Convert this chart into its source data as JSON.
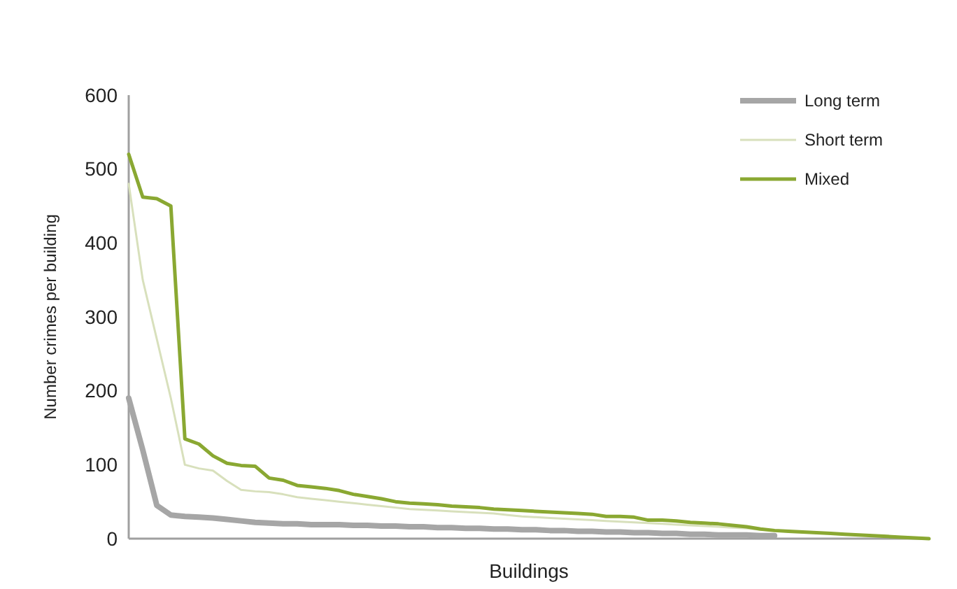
{
  "chart_data": {
    "type": "line",
    "xlabel": "Buildings",
    "ylabel": "Number crimes per building",
    "categories": [
      null,
      null,
      null,
      null,
      null,
      null,
      null,
      null,
      null,
      null,
      null,
      null,
      null,
      null,
      null,
      null,
      null,
      null,
      null,
      null,
      null,
      null,
      null,
      null,
      null,
      null,
      null,
      null,
      null,
      null,
      null,
      null,
      null,
      null,
      null,
      null,
      null,
      null,
      null,
      null,
      null,
      null,
      null,
      null,
      null,
      null,
      null,
      null,
      null,
      null,
      null,
      null,
      null,
      null,
      null,
      null,
      null,
      null
    ],
    "ylim": [
      0,
      600
    ],
    "yticks": [
      0,
      100,
      200,
      300,
      400,
      500,
      600
    ],
    "grid": false,
    "legend": "top right",
    "marker": "none",
    "line_style": "solid",
    "series": [
      {
        "name": "Long term",
        "color": "#a6a6a6",
        "values": [
          190,
          120,
          45,
          32,
          30,
          29,
          28,
          26,
          24,
          22,
          21,
          20,
          20,
          19,
          19,
          19,
          18,
          18,
          17,
          17,
          16,
          16,
          15,
          15,
          14,
          14,
          13,
          13,
          12,
          12,
          11,
          11,
          10,
          10,
          9,
          9,
          8,
          8,
          7,
          7,
          6,
          6,
          5,
          5,
          5,
          4,
          4,
          null,
          null,
          null,
          null,
          null,
          null,
          null,
          null,
          null,
          null,
          null
        ]
      },
      {
        "name": "Short term",
        "color": "#d8e0bc",
        "values": [
          480,
          350,
          270,
          190,
          100,
          95,
          92,
          78,
          66,
          64,
          63,
          60,
          56,
          54,
          52,
          50,
          48,
          46,
          44,
          42,
          40,
          39,
          38,
          37,
          36,
          35,
          34,
          32,
          30,
          29,
          28,
          27,
          26,
          25,
          24,
          23,
          22,
          21,
          20,
          19,
          18,
          17,
          16,
          15,
          14,
          12,
          11,
          10,
          9,
          8,
          7,
          6,
          5,
          4,
          3,
          2,
          1,
          0
        ]
      },
      {
        "name": "Mixed",
        "color": "#8aa832",
        "values": [
          520,
          462,
          460,
          450,
          135,
          128,
          112,
          102,
          99,
          98,
          82,
          79,
          72,
          70,
          68,
          65,
          60,
          57,
          54,
          50,
          48,
          47,
          46,
          44,
          43,
          42,
          40,
          39,
          38,
          37,
          36,
          35,
          34,
          33,
          30,
          30,
          29,
          25,
          25,
          24,
          22,
          21,
          20,
          18,
          16,
          13,
          11,
          10,
          9,
          8,
          7,
          6,
          5,
          4,
          3,
          2,
          1,
          0
        ]
      }
    ]
  }
}
